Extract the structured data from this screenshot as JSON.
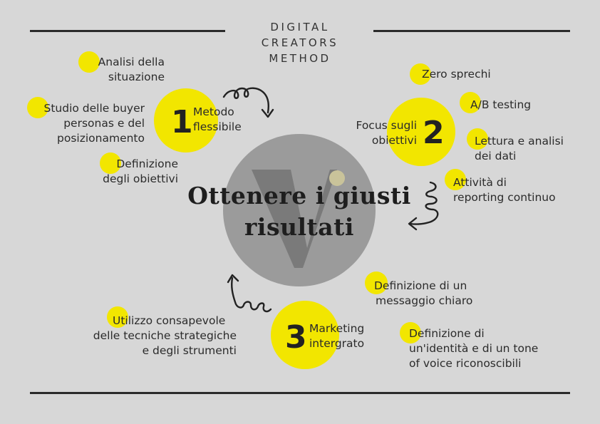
{
  "header": {
    "title_lines": [
      "DIGITAL",
      "CREATORS",
      "METHOD"
    ]
  },
  "center": {
    "title_line1": "Ottenere i giusti",
    "title_line2": "risultati"
  },
  "pillars": [
    {
      "number": "1",
      "label_line1": "Metodo",
      "label_line2": "flessibile"
    },
    {
      "number": "2",
      "label_line1": "Focus sugli",
      "label_line2": "obiettivi"
    },
    {
      "number": "3",
      "label_line1": "Marketing",
      "label_line2": "intergrato"
    }
  ],
  "pillar1_items": [
    {
      "line1": "Analisi della",
      "line2": "situazione"
    },
    {
      "line1": "Studio delle buyer",
      "line2": "personas e del",
      "line3": "posizionamento"
    },
    {
      "line1": "Definizione",
      "line2": "degli obiettivi"
    }
  ],
  "pillar2_items": [
    {
      "line1": "Zero sprechi"
    },
    {
      "line1": "A/B testing"
    },
    {
      "line1": "Lettura e analisi",
      "line2": "dei dati"
    },
    {
      "line1": "Attività di",
      "line2": "reporting continuo"
    }
  ],
  "pillar3_items": [
    {
      "line1": "Utilizzo consapevole",
      "line2": "delle tecniche strategiche",
      "line3": "e degli strumenti"
    },
    {
      "line1": "Definizione di un",
      "line2": "messaggio chiaro"
    },
    {
      "line1": "Definizione di",
      "line2": "un'identità e di un tone",
      "line3": "of voice riconoscibili"
    }
  ],
  "colors": {
    "background": "#d7d7d7",
    "accent_yellow": "#f2e600",
    "center_circle": "#9b9b9b",
    "text": "#2b2b2b"
  }
}
